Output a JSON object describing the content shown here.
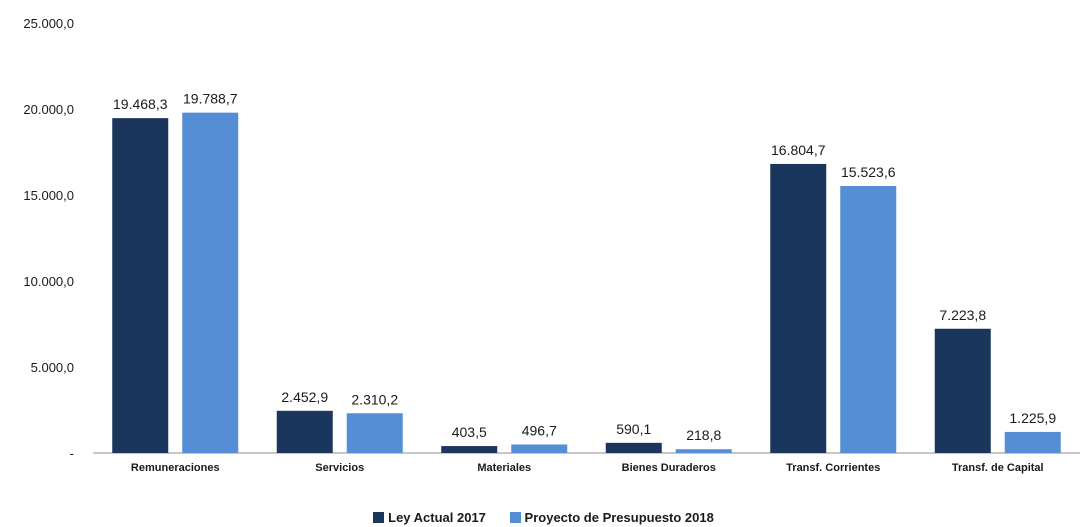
{
  "chart_data": {
    "type": "bar",
    "categories": [
      "Remuneraciones",
      "Servicios",
      "Materiales",
      "Bienes Duraderos",
      "Transf. Corrientes",
      "Transf. de Capital"
    ],
    "series": [
      {
        "name": "Ley Actual 2017",
        "color": "#1b365d",
        "values": [
          19468.3,
          2452.9,
          403.5,
          590.1,
          16804.7,
          7223.8
        ],
        "labels": [
          "19.468,3",
          "2.452,9",
          "403,5",
          "590,1",
          "16.804,7",
          "7.223,8"
        ]
      },
      {
        "name": "Proyecto de Presupuesto 2018",
        "color": "#558ed5",
        "values": [
          19788.7,
          2310.2,
          496.7,
          218.8,
          15523.6,
          1225.9
        ],
        "labels": [
          "19.788,7",
          "2.310,2",
          "496,7",
          "218,8",
          "15.523,6",
          "1.225,9"
        ]
      }
    ],
    "yticks": [
      0,
      5000,
      10000,
      15000,
      20000,
      25000
    ],
    "ytick_labels": [
      "-",
      "5.000,0",
      "10.000,0",
      "15.000,0",
      "20.000,0",
      "25.000,0"
    ],
    "ylim": [
      0,
      25000
    ],
    "grid": false,
    "legend_position": "bottom-center",
    "title": "",
    "xlabel": "",
    "ylabel": ""
  }
}
